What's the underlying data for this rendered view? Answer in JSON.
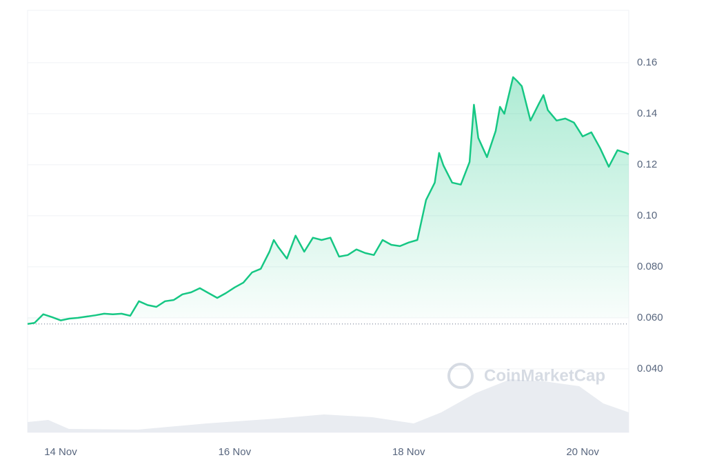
{
  "chart_data": {
    "type": "line",
    "watermark": "CoinMarketCap",
    "color": "#16c784",
    "grid": true,
    "baseline": true,
    "x": [
      13.62,
      13.7,
      13.8,
      13.9,
      14.0,
      14.1,
      14.2,
      14.3,
      14.4,
      14.5,
      14.6,
      14.7,
      14.8,
      14.9,
      15.0,
      15.1,
      15.2,
      15.3,
      15.4,
      15.5,
      15.6,
      15.7,
      15.8,
      15.9,
      16.0,
      16.1,
      16.2,
      16.3,
      16.4,
      16.45,
      16.5,
      16.6,
      16.7,
      16.8,
      16.9,
      17.0,
      17.1,
      17.2,
      17.3,
      17.4,
      17.5,
      17.6,
      17.7,
      17.8,
      17.9,
      18.0,
      18.1,
      18.2,
      18.3,
      18.35,
      18.4,
      18.5,
      18.6,
      18.7,
      18.75,
      18.8,
      18.9,
      19.0,
      19.05,
      19.1,
      19.2,
      19.25,
      19.3,
      19.4,
      19.5,
      19.55,
      19.6,
      19.7,
      19.8,
      19.9,
      20.0,
      20.1,
      20.2,
      20.3,
      20.4,
      20.5,
      20.53
    ],
    "values": [
      0.0576,
      0.058,
      0.0614,
      0.0603,
      0.059,
      0.0597,
      0.06,
      0.0605,
      0.061,
      0.0616,
      0.0614,
      0.0616,
      0.0608,
      0.0665,
      0.065,
      0.0643,
      0.0665,
      0.067,
      0.0692,
      0.07,
      0.0716,
      0.0697,
      0.0678,
      0.0697,
      0.0719,
      0.0738,
      0.0778,
      0.0792,
      0.0859,
      0.0905,
      0.0878,
      0.0832,
      0.0922,
      0.0859,
      0.0914,
      0.0905,
      0.0914,
      0.084,
      0.0846,
      0.0868,
      0.0854,
      0.0846,
      0.0905,
      0.0886,
      0.0881,
      0.0895,
      0.0905,
      0.1062,
      0.113,
      0.1246,
      0.1197,
      0.113,
      0.1122,
      0.1211,
      0.1435,
      0.1305,
      0.123,
      0.1332,
      0.1427,
      0.14,
      0.1543,
      0.1527,
      0.1508,
      0.1373,
      0.1441,
      0.1473,
      0.1414,
      0.1373,
      0.1381,
      0.1365,
      0.1311,
      0.1327,
      0.1265,
      0.1192,
      0.1257,
      0.1246,
      0.1241
    ],
    "xlim": [
      13.62,
      20.53
    ],
    "xticks": [
      {
        "value": 14,
        "label": "14 Nov"
      },
      {
        "value": 16,
        "label": "16 Nov"
      },
      {
        "value": 18,
        "label": "18 Nov"
      },
      {
        "value": 20,
        "label": "20 Nov"
      }
    ],
    "ylim": [
      0.0151,
      0.1805
    ],
    "yticks": [
      {
        "value": 0.04,
        "label": "0.040"
      },
      {
        "value": 0.06,
        "label": "0.060"
      },
      {
        "value": 0.08,
        "label": "0.080"
      },
      {
        "value": 0.1,
        "label": "0.10"
      },
      0.12,
      0.14,
      0.16
    ]
  }
}
